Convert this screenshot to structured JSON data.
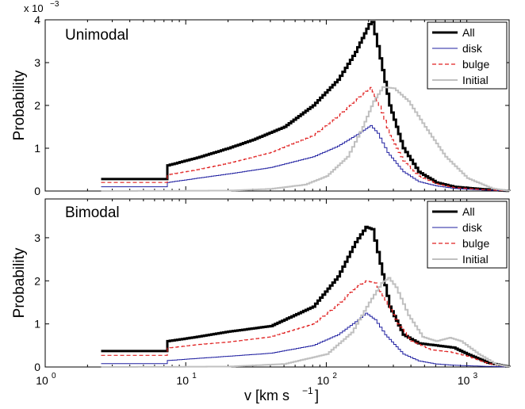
{
  "figure": {
    "xlabel": "v [km s",
    "xlabel_exp": "−1",
    "xlabel_close": "]",
    "xticks": [
      {
        "base": "10",
        "exp": "0"
      },
      {
        "base": "10",
        "exp": "1"
      },
      {
        "base": "10",
        "exp": "2"
      },
      {
        "base": "10",
        "exp": "3"
      }
    ],
    "scale_label": "x 10",
    "scale_exp": "−3"
  },
  "chart_data": [
    {
      "type": "line",
      "title": "Unimodal",
      "ylabel": "Probability",
      "xscale": "log",
      "xlim": [
        1,
        2000
      ],
      "ylim": [
        0,
        4
      ],
      "y_multiplier": "x 10^-3",
      "yticks": [
        0,
        1,
        2,
        3,
        4
      ],
      "ytick_labels": [
        "0",
        "1",
        "2",
        "3",
        "4"
      ],
      "legend": "top-right",
      "series": [
        {
          "name": "All",
          "color": "#000000",
          "style": "solid-thick",
          "points": [
            [
              2.5,
              0.28
            ],
            [
              7.4,
              0.28
            ],
            [
              7.4,
              0.6
            ],
            [
              12,
              0.78
            ],
            [
              20,
              1.0
            ],
            [
              30,
              1.2
            ],
            [
              50,
              1.5
            ],
            [
              80,
              2.0
            ],
            [
              120,
              2.6
            ],
            [
              160,
              3.25
            ],
            [
              200,
              3.9
            ],
            [
              210,
              3.95
            ],
            [
              240,
              3.1
            ],
            [
              280,
              2.0
            ],
            [
              350,
              1.0
            ],
            [
              450,
              0.45
            ],
            [
              600,
              0.2
            ],
            [
              800,
              0.1
            ],
            [
              1200,
              0.05
            ],
            [
              2000,
              0.0
            ]
          ]
        },
        {
          "name": "disk",
          "color": "#1f1fa0",
          "style": "solid-thin",
          "points": [
            [
              2.5,
              0.1
            ],
            [
              7.4,
              0.1
            ],
            [
              7.4,
              0.2
            ],
            [
              12,
              0.3
            ],
            [
              20,
              0.4
            ],
            [
              40,
              0.55
            ],
            [
              80,
              0.8
            ],
            [
              120,
              1.05
            ],
            [
              170,
              1.35
            ],
            [
              205,
              1.53
            ],
            [
              230,
              1.35
            ],
            [
              270,
              0.9
            ],
            [
              350,
              0.45
            ],
            [
              450,
              0.22
            ],
            [
              600,
              0.12
            ],
            [
              800,
              0.06
            ],
            [
              1200,
              0.03
            ],
            [
              2000,
              0.0
            ]
          ]
        },
        {
          "name": "bulge",
          "color": "#e02020",
          "style": "dashed",
          "points": [
            [
              2.5,
              0.2
            ],
            [
              7.4,
              0.2
            ],
            [
              7.4,
              0.38
            ],
            [
              12,
              0.5
            ],
            [
              20,
              0.65
            ],
            [
              40,
              0.9
            ],
            [
              80,
              1.3
            ],
            [
              120,
              1.75
            ],
            [
              170,
              2.2
            ],
            [
              205,
              2.42
            ],
            [
              235,
              2.0
            ],
            [
              280,
              1.3
            ],
            [
              350,
              0.7
            ],
            [
              450,
              0.35
            ],
            [
              600,
              0.17
            ],
            [
              800,
              0.08
            ],
            [
              1200,
              0.04
            ],
            [
              2000,
              0.0
            ]
          ]
        },
        {
          "name": "Initial",
          "color": "#c0c0c0",
          "style": "solid-medium",
          "points": [
            [
              2.5,
              0.0
            ],
            [
              20,
              0.01
            ],
            [
              40,
              0.05
            ],
            [
              70,
              0.15
            ],
            [
              100,
              0.35
            ],
            [
              140,
              0.8
            ],
            [
              180,
              1.5
            ],
            [
              215,
              2.1
            ],
            [
              250,
              2.43
            ],
            [
              300,
              2.4
            ],
            [
              380,
              2.1
            ],
            [
              500,
              1.5
            ],
            [
              700,
              0.8
            ],
            [
              1000,
              0.3
            ],
            [
              1500,
              0.06
            ],
            [
              2000,
              0.0
            ]
          ]
        }
      ]
    },
    {
      "type": "line",
      "title": "Bimodal",
      "ylabel": "Probability",
      "xscale": "log",
      "xlim": [
        1,
        2000
      ],
      "ylim": [
        0,
        3.9
      ],
      "yticks": [
        0,
        1,
        2,
        3
      ],
      "ytick_labels": [
        "0",
        "1",
        "2",
        "3"
      ],
      "legend": "top-right",
      "series": [
        {
          "name": "All",
          "color": "#000000",
          "style": "solid-thick",
          "points": [
            [
              2.5,
              0.37
            ],
            [
              7.4,
              0.37
            ],
            [
              7.4,
              0.6
            ],
            [
              12,
              0.7
            ],
            [
              20,
              0.82
            ],
            [
              40,
              0.95
            ],
            [
              80,
              1.4
            ],
            [
              120,
              2.1
            ],
            [
              160,
              2.9
            ],
            [
              190,
              3.25
            ],
            [
              210,
              3.2
            ],
            [
              240,
              2.4
            ],
            [
              280,
              1.4
            ],
            [
              350,
              0.75
            ],
            [
              450,
              0.55
            ],
            [
              600,
              0.5
            ],
            [
              800,
              0.45
            ],
            [
              1000,
              0.3
            ],
            [
              1400,
              0.1
            ],
            [
              2000,
              0.0
            ]
          ]
        },
        {
          "name": "disk",
          "color": "#1f1fa0",
          "style": "solid-thin",
          "points": [
            [
              2.5,
              0.08
            ],
            [
              7.4,
              0.08
            ],
            [
              7.4,
              0.15
            ],
            [
              12,
              0.2
            ],
            [
              20,
              0.25
            ],
            [
              40,
              0.32
            ],
            [
              80,
              0.5
            ],
            [
              120,
              0.75
            ],
            [
              160,
              1.05
            ],
            [
              190,
              1.25
            ],
            [
              220,
              1.1
            ],
            [
              260,
              0.75
            ],
            [
              350,
              0.3
            ],
            [
              450,
              0.14
            ],
            [
              600,
              0.07
            ],
            [
              800,
              0.04
            ],
            [
              1200,
              0.02
            ],
            [
              2000,
              0.0
            ]
          ]
        },
        {
          "name": "bulge",
          "color": "#e02020",
          "style": "dashed",
          "points": [
            [
              2.5,
              0.27
            ],
            [
              7.4,
              0.27
            ],
            [
              7.4,
              0.44
            ],
            [
              12,
              0.52
            ],
            [
              20,
              0.58
            ],
            [
              40,
              0.7
            ],
            [
              80,
              1.0
            ],
            [
              120,
              1.45
            ],
            [
              160,
              1.85
            ],
            [
              190,
              2.0
            ],
            [
              220,
              1.95
            ],
            [
              260,
              1.55
            ],
            [
              320,
              1.0
            ],
            [
              400,
              0.6
            ],
            [
              550,
              0.4
            ],
            [
              750,
              0.35
            ],
            [
              1000,
              0.25
            ],
            [
              1400,
              0.08
            ],
            [
              2000,
              0.0
            ]
          ]
        },
        {
          "name": "Initial",
          "color": "#c0c0c0",
          "style": "solid-medium",
          "points": [
            [
              2.5,
              0.0
            ],
            [
              20,
              0.01
            ],
            [
              50,
              0.07
            ],
            [
              100,
              0.3
            ],
            [
              150,
              0.8
            ],
            [
              200,
              1.5
            ],
            [
              245,
              1.95
            ],
            [
              275,
              2.07
            ],
            [
              310,
              1.85
            ],
            [
              380,
              1.2
            ],
            [
              480,
              0.7
            ],
            [
              600,
              0.6
            ],
            [
              750,
              0.68
            ],
            [
              900,
              0.6
            ],
            [
              1200,
              0.3
            ],
            [
              1600,
              0.06
            ],
            [
              2000,
              0.0
            ]
          ]
        }
      ]
    }
  ]
}
